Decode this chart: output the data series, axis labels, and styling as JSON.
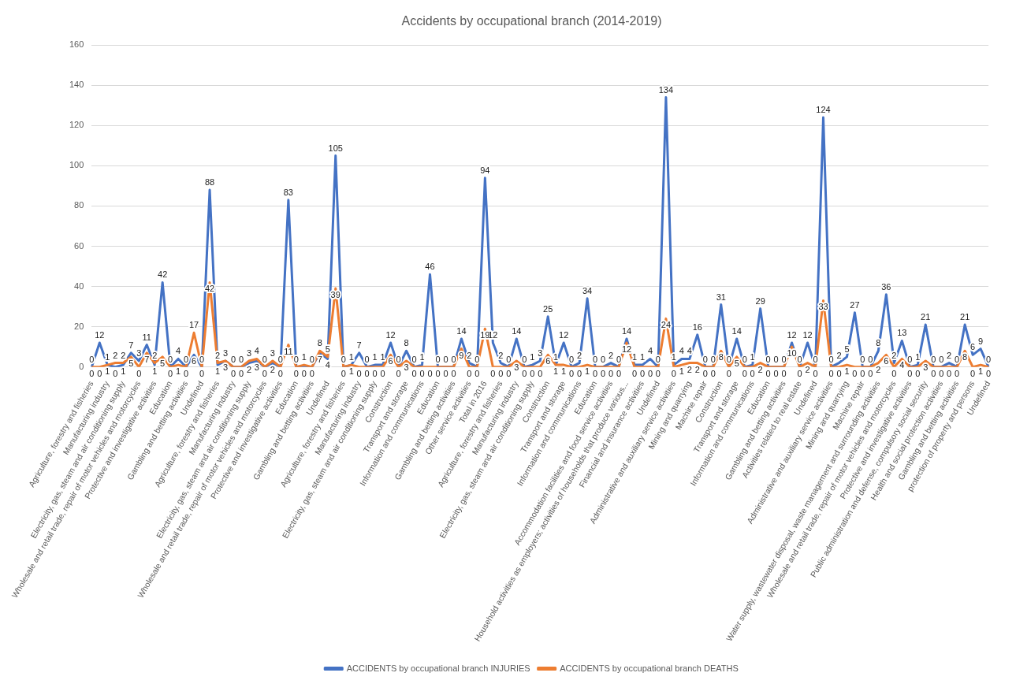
{
  "chart_data": {
    "type": "line",
    "title": "Accidents by occupational branch (2014-2019)",
    "categories": [
      "Agriculture, forestry and fisheries",
      null,
      "Manufacturing industry",
      null,
      "Electricity, gas, steam and air conditioning supply",
      null,
      "Wholesale and retail trade, repair of motor vehicles and motorcycles",
      null,
      "Protective and investigative activities",
      null,
      "Education",
      null,
      "Gambling and betting activities",
      null,
      "Undefined",
      null,
      "Agriculture, forestry and fisheries",
      null,
      "Manufacturing industry",
      null,
      "Electricity, gas, steam and air conditioning supply",
      null,
      "Wholesale and retail trade, repair of motor vehicles and motorcycles",
      null,
      "Protective and investigative activities",
      null,
      "Education",
      null,
      "Gambling and betting activities",
      null,
      "Undefined",
      null,
      "Agriculture, forestry and fisheries",
      null,
      "Manufacturing industry",
      null,
      "Electricity, gas, steam and air conditioning supply",
      null,
      "Construction",
      null,
      "Transport and storage",
      null,
      "Information and communications",
      null,
      "Education",
      null,
      "Gambling and betting activities",
      null,
      "Other service activities",
      null,
      "Total in 2016",
      null,
      "Agriculture, forestry and fisheries",
      null,
      "Manufacturing industry",
      null,
      "Electricity, gas, steam and air conditioning supply",
      null,
      "Construction",
      null,
      "Transport and storage",
      null,
      "Information and communications",
      null,
      "Education",
      null,
      "Accommodation facilities and food service activities",
      null,
      "Household activities as employers; activities of households that produce various...",
      null,
      "Financial and insurance activities",
      null,
      "Undefined",
      null,
      "Administrative and auxiliary service activities",
      null,
      "Mining and quarrying",
      null,
      "Machine repair",
      null,
      "Construction",
      null,
      "Transport and storage",
      null,
      "Information and communications",
      null,
      "Education",
      null,
      "Gambling and betting activities",
      null,
      "Activities related to real estate",
      null,
      "Undefined",
      null,
      "Administrative and auxiliary service activities",
      null,
      "Mining and quarrying",
      null,
      "Machine repair",
      null,
      "Water supply, wastewater disposal, waste management and surrounding activities",
      null,
      "Wholesale and retail trade, repair of motor vehicles and motorcycles",
      null,
      "Protective and investigative activities",
      null,
      "Public administration and defense, compulsory social security",
      null,
      "Health and social protection activities",
      null,
      "Gambling and betting activities",
      null,
      "protection of property and persons",
      null,
      "Undefined"
    ],
    "series": [
      {
        "name": "ACCIDENTS by occupational branch INJURIES",
        "color": "#4472c4",
        "values": [
          0,
          12,
          1,
          0,
          1,
          7,
          3,
          11,
          1,
          42,
          0,
          4,
          0,
          6,
          0,
          88,
          1,
          3,
          0,
          0,
          2,
          3,
          0,
          2,
          0,
          83,
          0,
          0,
          0,
          7,
          4,
          105,
          0,
          1,
          7,
          0,
          1,
          1,
          12,
          0,
          8,
          0,
          1,
          46,
          0,
          0,
          0,
          14,
          2,
          0,
          94,
          12,
          2,
          0,
          14,
          0,
          1,
          3,
          25,
          1,
          12,
          0,
          2,
          34,
          0,
          0,
          2,
          0,
          14,
          1,
          1,
          4,
          0,
          134,
          1,
          4,
          4,
          16,
          0,
          0,
          31,
          0,
          14,
          0,
          1,
          29,
          0,
          0,
          0,
          12,
          0,
          12,
          0,
          124,
          0,
          2,
          5,
          27,
          0,
          0,
          8,
          36,
          2,
          13,
          0,
          1,
          21,
          0,
          0,
          2,
          0,
          21,
          6,
          9,
          0
        ]
      },
      {
        "name": "ACCIDENTS by occupational branch DEATHS",
        "color": "#ed7d31",
        "values": [
          0,
          0,
          1,
          2,
          2,
          5,
          0,
          7,
          2,
          5,
          0,
          1,
          0,
          17,
          0,
          42,
          2,
          3,
          0,
          0,
          3,
          4,
          0,
          3,
          0,
          11,
          0,
          1,
          0,
          8,
          5,
          39,
          0,
          1,
          0,
          0,
          0,
          0,
          6,
          0,
          3,
          0,
          0,
          0,
          0,
          0,
          0,
          9,
          0,
          0,
          19,
          0,
          0,
          0,
          3,
          0,
          0,
          0,
          6,
          1,
          1,
          0,
          0,
          1,
          0,
          0,
          0,
          0,
          12,
          0,
          0,
          0,
          0,
          24,
          0,
          1,
          2,
          2,
          0,
          0,
          8,
          0,
          5,
          0,
          0,
          2,
          0,
          0,
          0,
          10,
          0,
          2,
          0,
          33,
          0,
          0,
          1,
          0,
          0,
          0,
          2,
          6,
          0,
          4,
          0,
          0,
          3,
          0,
          0,
          0,
          0,
          8,
          0,
          1,
          0
        ]
      }
    ],
    "ylim": [
      0,
      160
    ],
    "yticks": [
      0,
      20,
      40,
      60,
      80,
      100,
      120,
      140,
      160
    ],
    "grid": "y",
    "legend": "bottom",
    "marker": "none",
    "line_style": "solid",
    "data_labels": true
  }
}
